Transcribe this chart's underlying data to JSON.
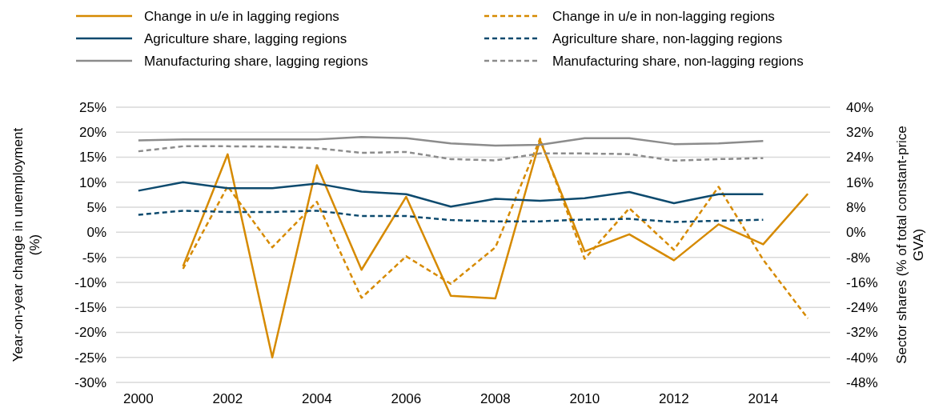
{
  "chart_data": {
    "type": "line",
    "categories": [
      "2000",
      null,
      "2002",
      null,
      "2004",
      null,
      "2006",
      null,
      "2008",
      null,
      "2010",
      null,
      "2012",
      null,
      "2014",
      null
    ],
    "ylabel": "Year-on-year change in unemployment\n(%)",
    "y2label": "Sector shares (% of total constant-price\nGVA)",
    "ylim": [
      -30,
      25
    ],
    "yticks": [
      {
        "value": -30,
        "label": "-30%"
      },
      {
        "value": -25,
        "label": "-25%"
      },
      {
        "value": -20,
        "label": "-20%"
      },
      {
        "value": -15,
        "label": "-15%"
      },
      {
        "value": -10,
        "label": "-10%"
      },
      {
        "value": -5,
        "label": "-5%"
      },
      {
        "value": 0,
        "label": "0%"
      },
      {
        "value": 5,
        "label": "5%"
      },
      {
        "value": 10,
        "label": "10%"
      },
      {
        "value": 15,
        "label": "15%"
      },
      {
        "value": 20,
        "label": "20%"
      },
      {
        "value": 25,
        "label": "25%"
      }
    ],
    "y2lim": [
      -48,
      40
    ],
    "y2ticks": [
      {
        "value": -48,
        "label": "-48%"
      },
      {
        "value": -40,
        "label": "-40%"
      },
      {
        "value": -32,
        "label": "-32%"
      },
      {
        "value": -24,
        "label": "-24%"
      },
      {
        "value": -16,
        "label": "-16%"
      },
      {
        "value": -8,
        "label": "-8%"
      },
      {
        "value": 0,
        "label": "0%"
      },
      {
        "value": 8,
        "label": "8%"
      },
      {
        "value": 16,
        "label": "16%"
      },
      {
        "value": 24,
        "label": "24%"
      },
      {
        "value": 32,
        "label": "32%"
      },
      {
        "value": 40,
        "label": "40%"
      }
    ],
    "grid": "y",
    "legend": "top",
    "series": [
      {
        "name": "Change in u/e in lagging regions",
        "color": "#d68a00",
        "line_style": "solid",
        "values": [
          null,
          -6.8,
          15.6,
          -25,
          13.4,
          -7.5,
          7.1,
          -12.7,
          -13.2,
          18.4,
          -3.8,
          -0.4,
          -5.6,
          1.6,
          -2.4,
          7.7
        ]
      },
      {
        "name": "Change in u/e in non-lagging regions",
        "color": "#d68a00",
        "line_style": "dashed",
        "values": [
          null,
          -7.3,
          9.2,
          -3.0,
          6.1,
          -13.1,
          -4.8,
          -10.3,
          -3.0,
          18.7,
          -5.3,
          4.8,
          -3.5,
          9.1,
          -5.5,
          -17.2
        ]
      },
      {
        "name": "Agriculture share, lagging regions",
        "color": "#0d4a6e",
        "line_style": "solid",
        "axis": "y2",
        "values": [
          13.3,
          16.0,
          14.1,
          14.1,
          15.6,
          13.0,
          12.2,
          8.2,
          10.7,
          10.1,
          10.9,
          12.9,
          9.3,
          12.2,
          12.2,
          null
        ]
      },
      {
        "name": "Agriculture share, non-lagging regions",
        "color": "#0d4a6e",
        "line_style": "dashed",
        "axis": "y2",
        "values": [
          5.6,
          6.9,
          6.5,
          6.5,
          6.9,
          5.2,
          5.2,
          3.9,
          3.5,
          3.5,
          4.1,
          4.3,
          3.3,
          3.7,
          4.0,
          null
        ]
      },
      {
        "name": "Manufacturing share, lagging regions",
        "color": "#8c8c8c",
        "line_style": "solid",
        "axis": "y2",
        "values": [
          29.4,
          29.7,
          29.7,
          29.7,
          29.7,
          30.5,
          30.1,
          28.4,
          27.7,
          28.0,
          30.1,
          30.1,
          28.2,
          28.4,
          29.2,
          null
        ]
      },
      {
        "name": "Manufacturing share, non-lagging regions",
        "color": "#8c8c8c",
        "line_style": "dashed",
        "axis": "y2",
        "values": [
          25.9,
          27.5,
          27.5,
          27.4,
          26.9,
          25.4,
          25.7,
          23.4,
          23.0,
          25.2,
          25.2,
          25.0,
          22.9,
          23.4,
          23.7,
          null
        ]
      }
    ]
  }
}
